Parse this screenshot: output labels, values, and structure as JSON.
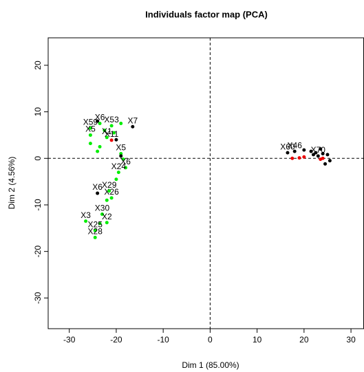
{
  "chart_data": {
    "type": "scatter",
    "title": "Individuals factor map (PCA)",
    "xlabel": "Dim 1 (85.00%)",
    "ylabel": "Dim 2 (4.56%)",
    "xlim": [
      -34.5,
      32.7
    ],
    "ylim": [
      -36.6,
      25.9
    ],
    "xticks": [
      -30,
      -20,
      -10,
      0,
      10,
      20,
      30
    ],
    "yticks": [
      -30,
      -20,
      -10,
      0,
      10,
      20
    ],
    "hline": 0,
    "vline": 0,
    "series": [
      {
        "color": "#00ee00",
        "x": [
          -25.5,
          -25.5,
          -25.5,
          -23.5,
          -22.5,
          -22,
          -23.5,
          -21,
          -19,
          -20.5,
          -24,
          -19,
          -18.5,
          -18,
          -19.5,
          -20,
          -21,
          -22,
          -23,
          -26.5,
          -22,
          -23.5,
          -24.5,
          -24.5,
          -21.5
        ],
        "y": [
          6.5,
          5,
          3.2,
          7.5,
          6,
          4.5,
          2.5,
          7,
          7.5,
          5.5,
          1.5,
          1,
          -0.2,
          -2,
          -3,
          -4.5,
          -8.5,
          -9,
          -12,
          -13.5,
          -13.8,
          -14,
          -15.5,
          -17,
          -7
        ],
        "labels": [
          "X59",
          "X5",
          null,
          "X6",
          null,
          "X1",
          null,
          "X53",
          null,
          null,
          null,
          "X5",
          null,
          "X6",
          "X24",
          null,
          "X26",
          null,
          "X30",
          "X3",
          "X2",
          null,
          "X25",
          "X28",
          "X29"
        ]
      },
      {
        "color": "#000000",
        "x": [
          -16.5,
          -20,
          -24,
          -19,
          -24,
          16.5,
          18,
          20,
          21.5,
          22.5,
          23,
          24,
          25,
          24.5,
          25.5,
          22,
          23.5
        ],
        "y": [
          6.8,
          4,
          -7.5,
          0.5,
          8,
          1.2,
          1.5,
          1.8,
          1.5,
          1.2,
          0.5,
          1,
          0.8,
          -1.2,
          -0.5,
          0.8,
          2
        ],
        "labels": [
          "X7",
          null,
          "X6",
          null,
          null,
          "X60",
          "X46",
          null,
          null,
          null,
          "X70",
          null,
          null,
          null,
          null,
          null,
          null
        ]
      },
      {
        "color": "#ee0000",
        "x": [
          -21,
          17.5,
          19,
          20,
          23.5,
          24
        ],
        "y": [
          3.9,
          0,
          0.1,
          0.3,
          -0.2,
          0
        ],
        "labels": [
          "X11",
          null,
          null,
          null,
          null,
          null
        ]
      }
    ]
  }
}
